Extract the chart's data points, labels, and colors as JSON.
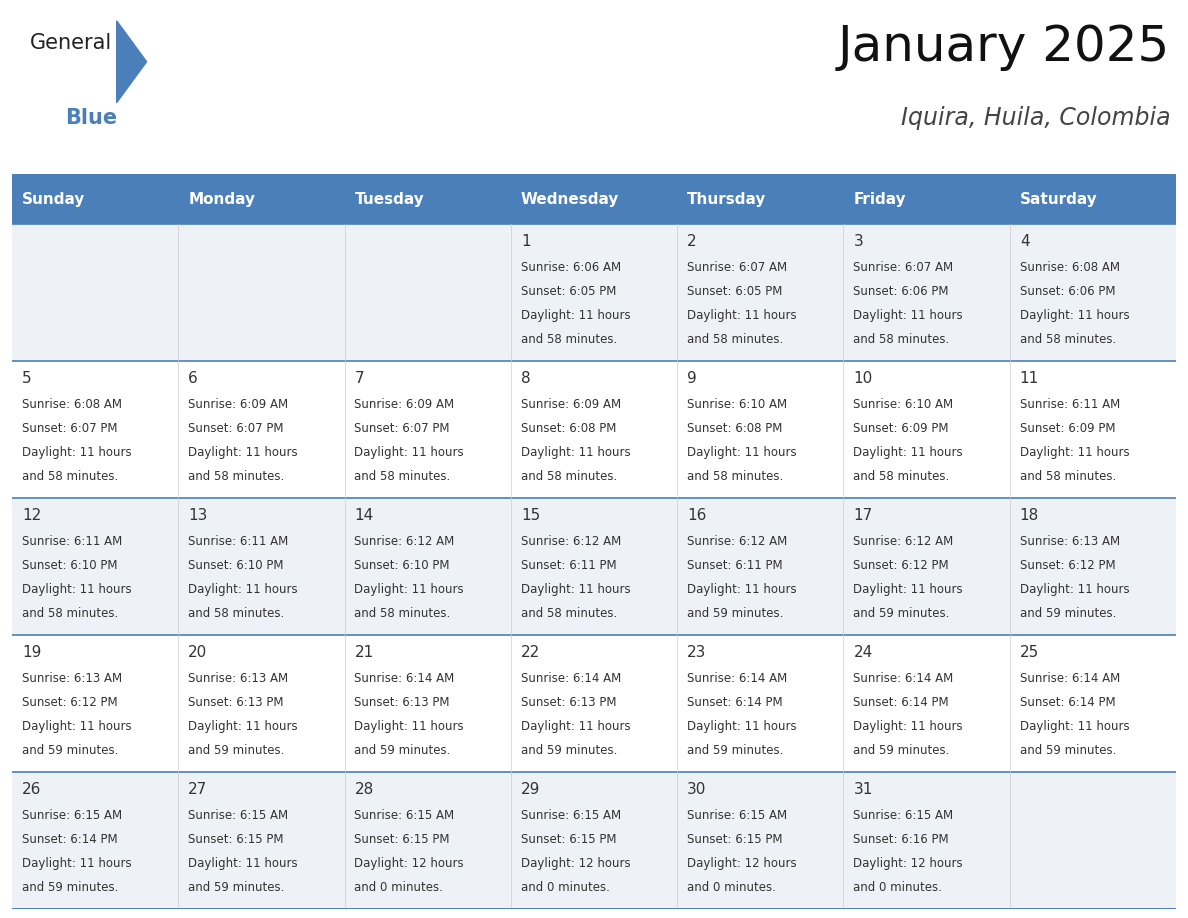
{
  "title": "January 2025",
  "subtitle": "Iquira, Huila, Colombia",
  "header_color": "#4a7fba",
  "header_text_color": "#ffffff",
  "row_bg_odd": "#eef2f7",
  "row_bg_even": "#ffffff",
  "separator_color": "#4a7fba",
  "grid_line_color": "#cccccc",
  "text_color": "#333333",
  "day_names": [
    "Sunday",
    "Monday",
    "Tuesday",
    "Wednesday",
    "Thursday",
    "Friday",
    "Saturday"
  ],
  "title_fontsize": 36,
  "subtitle_fontsize": 17,
  "header_fontsize": 11,
  "day_num_fontsize": 11,
  "cell_fontsize": 8.5,
  "days": [
    {
      "day": 1,
      "col": 3,
      "row": 0,
      "sunrise": "6:06 AM",
      "sunset": "6:05 PM",
      "dl1": "Daylight: 11 hours",
      "dl2": "and 58 minutes."
    },
    {
      "day": 2,
      "col": 4,
      "row": 0,
      "sunrise": "6:07 AM",
      "sunset": "6:05 PM",
      "dl1": "Daylight: 11 hours",
      "dl2": "and 58 minutes."
    },
    {
      "day": 3,
      "col": 5,
      "row": 0,
      "sunrise": "6:07 AM",
      "sunset": "6:06 PM",
      "dl1": "Daylight: 11 hours",
      "dl2": "and 58 minutes."
    },
    {
      "day": 4,
      "col": 6,
      "row": 0,
      "sunrise": "6:08 AM",
      "sunset": "6:06 PM",
      "dl1": "Daylight: 11 hours",
      "dl2": "and 58 minutes."
    },
    {
      "day": 5,
      "col": 0,
      "row": 1,
      "sunrise": "6:08 AM",
      "sunset": "6:07 PM",
      "dl1": "Daylight: 11 hours",
      "dl2": "and 58 minutes."
    },
    {
      "day": 6,
      "col": 1,
      "row": 1,
      "sunrise": "6:09 AM",
      "sunset": "6:07 PM",
      "dl1": "Daylight: 11 hours",
      "dl2": "and 58 minutes."
    },
    {
      "day": 7,
      "col": 2,
      "row": 1,
      "sunrise": "6:09 AM",
      "sunset": "6:07 PM",
      "dl1": "Daylight: 11 hours",
      "dl2": "and 58 minutes."
    },
    {
      "day": 8,
      "col": 3,
      "row": 1,
      "sunrise": "6:09 AM",
      "sunset": "6:08 PM",
      "dl1": "Daylight: 11 hours",
      "dl2": "and 58 minutes."
    },
    {
      "day": 9,
      "col": 4,
      "row": 1,
      "sunrise": "6:10 AM",
      "sunset": "6:08 PM",
      "dl1": "Daylight: 11 hours",
      "dl2": "and 58 minutes."
    },
    {
      "day": 10,
      "col": 5,
      "row": 1,
      "sunrise": "6:10 AM",
      "sunset": "6:09 PM",
      "dl1": "Daylight: 11 hours",
      "dl2": "and 58 minutes."
    },
    {
      "day": 11,
      "col": 6,
      "row": 1,
      "sunrise": "6:11 AM",
      "sunset": "6:09 PM",
      "dl1": "Daylight: 11 hours",
      "dl2": "and 58 minutes."
    },
    {
      "day": 12,
      "col": 0,
      "row": 2,
      "sunrise": "6:11 AM",
      "sunset": "6:10 PM",
      "dl1": "Daylight: 11 hours",
      "dl2": "and 58 minutes."
    },
    {
      "day": 13,
      "col": 1,
      "row": 2,
      "sunrise": "6:11 AM",
      "sunset": "6:10 PM",
      "dl1": "Daylight: 11 hours",
      "dl2": "and 58 minutes."
    },
    {
      "day": 14,
      "col": 2,
      "row": 2,
      "sunrise": "6:12 AM",
      "sunset": "6:10 PM",
      "dl1": "Daylight: 11 hours",
      "dl2": "and 58 minutes."
    },
    {
      "day": 15,
      "col": 3,
      "row": 2,
      "sunrise": "6:12 AM",
      "sunset": "6:11 PM",
      "dl1": "Daylight: 11 hours",
      "dl2": "and 58 minutes."
    },
    {
      "day": 16,
      "col": 4,
      "row": 2,
      "sunrise": "6:12 AM",
      "sunset": "6:11 PM",
      "dl1": "Daylight: 11 hours",
      "dl2": "and 59 minutes."
    },
    {
      "day": 17,
      "col": 5,
      "row": 2,
      "sunrise": "6:12 AM",
      "sunset": "6:12 PM",
      "dl1": "Daylight: 11 hours",
      "dl2": "and 59 minutes."
    },
    {
      "day": 18,
      "col": 6,
      "row": 2,
      "sunrise": "6:13 AM",
      "sunset": "6:12 PM",
      "dl1": "Daylight: 11 hours",
      "dl2": "and 59 minutes."
    },
    {
      "day": 19,
      "col": 0,
      "row": 3,
      "sunrise": "6:13 AM",
      "sunset": "6:12 PM",
      "dl1": "Daylight: 11 hours",
      "dl2": "and 59 minutes."
    },
    {
      "day": 20,
      "col": 1,
      "row": 3,
      "sunrise": "6:13 AM",
      "sunset": "6:13 PM",
      "dl1": "Daylight: 11 hours",
      "dl2": "and 59 minutes."
    },
    {
      "day": 21,
      "col": 2,
      "row": 3,
      "sunrise": "6:14 AM",
      "sunset": "6:13 PM",
      "dl1": "Daylight: 11 hours",
      "dl2": "and 59 minutes."
    },
    {
      "day": 22,
      "col": 3,
      "row": 3,
      "sunrise": "6:14 AM",
      "sunset": "6:13 PM",
      "dl1": "Daylight: 11 hours",
      "dl2": "and 59 minutes."
    },
    {
      "day": 23,
      "col": 4,
      "row": 3,
      "sunrise": "6:14 AM",
      "sunset": "6:14 PM",
      "dl1": "Daylight: 11 hours",
      "dl2": "and 59 minutes."
    },
    {
      "day": 24,
      "col": 5,
      "row": 3,
      "sunrise": "6:14 AM",
      "sunset": "6:14 PM",
      "dl1": "Daylight: 11 hours",
      "dl2": "and 59 minutes."
    },
    {
      "day": 25,
      "col": 6,
      "row": 3,
      "sunrise": "6:14 AM",
      "sunset": "6:14 PM",
      "dl1": "Daylight: 11 hours",
      "dl2": "and 59 minutes."
    },
    {
      "day": 26,
      "col": 0,
      "row": 4,
      "sunrise": "6:15 AM",
      "sunset": "6:14 PM",
      "dl1": "Daylight: 11 hours",
      "dl2": "and 59 minutes."
    },
    {
      "day": 27,
      "col": 1,
      "row": 4,
      "sunrise": "6:15 AM",
      "sunset": "6:15 PM",
      "dl1": "Daylight: 11 hours",
      "dl2": "and 59 minutes."
    },
    {
      "day": 28,
      "col": 2,
      "row": 4,
      "sunrise": "6:15 AM",
      "sunset": "6:15 PM",
      "dl1": "Daylight: 12 hours",
      "dl2": "and 0 minutes."
    },
    {
      "day": 29,
      "col": 3,
      "row": 4,
      "sunrise": "6:15 AM",
      "sunset": "6:15 PM",
      "dl1": "Daylight: 12 hours",
      "dl2": "and 0 minutes."
    },
    {
      "day": 30,
      "col": 4,
      "row": 4,
      "sunrise": "6:15 AM",
      "sunset": "6:15 PM",
      "dl1": "Daylight: 12 hours",
      "dl2": "and 0 minutes."
    },
    {
      "day": 31,
      "col": 5,
      "row": 4,
      "sunrise": "6:15 AM",
      "sunset": "6:16 PM",
      "dl1": "Daylight: 12 hours",
      "dl2": "and 0 minutes."
    }
  ]
}
